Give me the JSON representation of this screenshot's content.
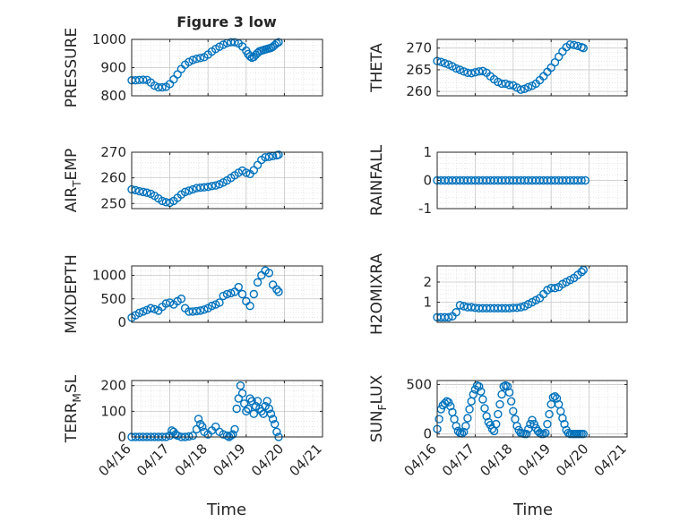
{
  "figure": {
    "title": "Figure 3 low",
    "xlabel": "Time"
  },
  "chart_data": [
    {
      "type": "scatter",
      "ylabel": "PRESSURE",
      "xlim": [
        "04/16",
        "04/21"
      ],
      "ylim": [
        800,
        1000
      ],
      "yticks": [
        800,
        900,
        1000
      ],
      "grid": true,
      "marker": "circle",
      "color": "#0072BD",
      "x": [
        0.0,
        0.1,
        0.2,
        0.3,
        0.4,
        0.5,
        0.6,
        0.7,
        0.8,
        0.9,
        1.0,
        1.1,
        1.2,
        1.3,
        1.4,
        1.5,
        1.6,
        1.7,
        1.8,
        1.9,
        2.0,
        2.1,
        2.2,
        2.3,
        2.4,
        2.5,
        2.6,
        2.7,
        2.8,
        2.9,
        3.0,
        3.05,
        3.1,
        3.15,
        3.2,
        3.25,
        3.3,
        3.35,
        3.4,
        3.45,
        3.5,
        3.55,
        3.6,
        3.65,
        3.7,
        3.75,
        3.8,
        3.85
      ],
      "y": [
        855,
        855,
        856,
        857,
        856,
        847,
        836,
        830,
        830,
        832,
        842,
        858,
        876,
        895,
        910,
        920,
        927,
        931,
        934,
        937,
        946,
        957,
        966,
        974,
        981,
        987,
        990,
        990,
        986,
        975,
        960,
        948,
        940,
        935,
        938,
        945,
        952,
        958,
        960,
        962,
        964,
        966,
        968,
        970,
        974,
        980,
        986,
        990
      ]
    },
    {
      "type": "scatter",
      "ylabel": "THETA",
      "xlim": [
        "04/16",
        "04/21"
      ],
      "ylim": [
        259,
        272
      ],
      "yticks": [
        260,
        265,
        270
      ],
      "grid": true,
      "marker": "circle",
      "color": "#0072BD",
      "x": [
        0.0,
        0.1,
        0.2,
        0.3,
        0.4,
        0.5,
        0.6,
        0.7,
        0.8,
        0.9,
        1.0,
        1.1,
        1.2,
        1.3,
        1.4,
        1.5,
        1.6,
        1.7,
        1.8,
        1.9,
        2.0,
        2.1,
        2.2,
        2.3,
        2.4,
        2.5,
        2.6,
        2.7,
        2.8,
        2.9,
        3.0,
        3.1,
        3.2,
        3.3,
        3.4,
        3.5,
        3.6,
        3.7,
        3.8,
        3.85
      ],
      "y": [
        267,
        266.8,
        266.5,
        266.2,
        265.8,
        265.3,
        265,
        264.6,
        264.3,
        264.2,
        264.4,
        264.6,
        264.7,
        264.3,
        263.5,
        262.8,
        262.2,
        261.8,
        261.8,
        261.5,
        261.4,
        260.9,
        260.4,
        260.6,
        261,
        261.3,
        261.8,
        262.6,
        263.5,
        264.5,
        265.5,
        266.7,
        268,
        269.2,
        270.2,
        270.8,
        270.7,
        270.5,
        270.2,
        270
      ]
    },
    {
      "type": "scatter",
      "ylabel": "AIR",
      "ylabel_subscript": "T",
      "ylabel_suffix": "EMP",
      "xlim": [
        "04/16",
        "04/21"
      ],
      "ylim": [
        248,
        270
      ],
      "yticks": [
        250,
        260,
        270
      ],
      "grid": true,
      "marker": "circle",
      "color": "#0072BD",
      "x": [
        0.0,
        0.1,
        0.2,
        0.3,
        0.4,
        0.5,
        0.6,
        0.7,
        0.8,
        0.9,
        1.0,
        1.1,
        1.2,
        1.3,
        1.4,
        1.5,
        1.6,
        1.7,
        1.8,
        1.9,
        2.0,
        2.1,
        2.2,
        2.3,
        2.4,
        2.5,
        2.6,
        2.7,
        2.8,
        2.9,
        3.0,
        3.1,
        3.2,
        3.3,
        3.4,
        3.5,
        3.6,
        3.7,
        3.8,
        3.85
      ],
      "y": [
        255.5,
        255.2,
        254.8,
        254.5,
        254.2,
        253.8,
        253,
        252,
        251,
        250.5,
        250.3,
        251,
        252.2,
        253.5,
        254.5,
        255,
        255.5,
        256,
        256.2,
        256.3,
        256.5,
        256.8,
        257,
        257.5,
        258.2,
        259,
        260,
        261,
        262,
        262.8,
        262,
        261.5,
        263,
        265,
        267,
        268,
        268.2,
        268.5,
        268.8,
        269
      ]
    },
    {
      "type": "scatter",
      "ylabel": "RAINFALL",
      "xlim": [
        "04/16",
        "04/21"
      ],
      "ylim": [
        -1,
        1
      ],
      "yticks": [
        -1,
        0,
        1
      ],
      "grid": true,
      "marker": "circle",
      "color": "#0072BD",
      "x": [
        0.0,
        0.1,
        0.2,
        0.3,
        0.4,
        0.5,
        0.6,
        0.7,
        0.8,
        0.9,
        1.0,
        1.1,
        1.2,
        1.3,
        1.4,
        1.5,
        1.6,
        1.7,
        1.8,
        1.9,
        2.0,
        2.1,
        2.2,
        2.3,
        2.4,
        2.5,
        2.6,
        2.7,
        2.8,
        2.9,
        3.0,
        3.1,
        3.2,
        3.3,
        3.4,
        3.5,
        3.6,
        3.7,
        3.8,
        3.9
      ],
      "y": [
        0,
        0,
        0,
        0,
        0,
        0,
        0,
        0,
        0,
        0,
        0,
        0,
        0,
        0,
        0,
        0,
        0,
        0,
        0,
        0,
        0,
        0,
        0,
        0,
        0,
        0,
        0,
        0,
        0,
        0,
        0,
        0,
        0,
        0,
        0,
        0,
        0,
        0,
        0,
        0
      ]
    },
    {
      "type": "scatter",
      "ylabel": "MIXDEPTH",
      "xlim": [
        "04/16",
        "04/21"
      ],
      "ylim": [
        0,
        1200
      ],
      "yticks": [
        0,
        500,
        1000
      ],
      "grid": true,
      "marker": "circle",
      "color": "#0072BD",
      "x": [
        0.0,
        0.1,
        0.2,
        0.3,
        0.4,
        0.5,
        0.6,
        0.7,
        0.8,
        0.9,
        1.0,
        1.1,
        1.2,
        1.3,
        1.4,
        1.5,
        1.6,
        1.7,
        1.8,
        1.9,
        2.0,
        2.1,
        2.2,
        2.3,
        2.4,
        2.5,
        2.6,
        2.7,
        2.8,
        2.9,
        3.0,
        3.1,
        3.2,
        3.3,
        3.4,
        3.5,
        3.6,
        3.7,
        3.8,
        3.85
      ],
      "y": [
        100,
        150,
        200,
        230,
        260,
        300,
        280,
        250,
        330,
        400,
        420,
        380,
        450,
        500,
        300,
        230,
        230,
        240,
        250,
        270,
        300,
        350,
        380,
        420,
        560,
        600,
        620,
        650,
        750,
        600,
        450,
        350,
        600,
        850,
        1000,
        1100,
        1050,
        800,
        700,
        650
      ]
    },
    {
      "type": "scatter",
      "ylabel": "H2OMIXRA",
      "xlim": [
        "04/16",
        "04/21"
      ],
      "ylim": [
        0,
        2.8
      ],
      "yticks": [
        1,
        2
      ],
      "grid": true,
      "marker": "circle",
      "color": "#0072BD",
      "x": [
        0.0,
        0.1,
        0.2,
        0.3,
        0.4,
        0.5,
        0.6,
        0.7,
        0.8,
        0.9,
        1.0,
        1.1,
        1.2,
        1.3,
        1.4,
        1.5,
        1.6,
        1.7,
        1.8,
        1.9,
        2.0,
        2.1,
        2.2,
        2.3,
        2.4,
        2.5,
        2.6,
        2.7,
        2.8,
        2.9,
        3.0,
        3.1,
        3.2,
        3.3,
        3.4,
        3.5,
        3.6,
        3.7,
        3.8,
        3.85
      ],
      "y": [
        0.25,
        0.25,
        0.25,
        0.25,
        0.3,
        0.5,
        0.85,
        0.8,
        0.75,
        0.75,
        0.72,
        0.7,
        0.7,
        0.7,
        0.7,
        0.7,
        0.7,
        0.7,
        0.7,
        0.7,
        0.72,
        0.72,
        0.75,
        0.8,
        0.9,
        1.0,
        1.1,
        1.2,
        1.4,
        1.6,
        1.7,
        1.7,
        1.75,
        1.9,
        2.0,
        2.1,
        2.2,
        2.35,
        2.5,
        2.6
      ]
    },
    {
      "type": "scatter",
      "ylabel": "TERR",
      "ylabel_subscript": "M",
      "ylabel_suffix": "SL",
      "xlim": [
        "04/16",
        "04/21"
      ],
      "ylim": [
        0,
        220
      ],
      "yticks": [
        0,
        100,
        200
      ],
      "xticks": [
        "04/16",
        "04/17",
        "04/18",
        "04/19",
        "04/20",
        "04/21"
      ],
      "grid": true,
      "marker": "circle",
      "color": "#0072BD",
      "x": [
        0.0,
        0.1,
        0.2,
        0.3,
        0.4,
        0.5,
        0.6,
        0.7,
        0.8,
        0.9,
        1.0,
        1.05,
        1.1,
        1.15,
        1.2,
        1.3,
        1.4,
        1.5,
        1.6,
        1.7,
        1.75,
        1.8,
        1.85,
        1.9,
        2.0,
        2.1,
        2.2,
        2.3,
        2.4,
        2.5,
        2.55,
        2.6,
        2.65,
        2.7,
        2.75,
        2.8,
        2.85,
        2.9,
        2.95,
        3.0,
        3.05,
        3.1,
        3.15,
        3.2,
        3.25,
        3.3,
        3.35,
        3.4,
        3.45,
        3.5,
        3.55,
        3.6,
        3.65,
        3.7,
        3.75,
        3.8,
        3.85
      ],
      "y": [
        0,
        0,
        0,
        0,
        0,
        0,
        0,
        0,
        0,
        0,
        5,
        25,
        20,
        10,
        5,
        0,
        0,
        2,
        5,
        30,
        70,
        50,
        40,
        20,
        10,
        25,
        40,
        20,
        10,
        5,
        0,
        5,
        10,
        30,
        110,
        150,
        200,
        170,
        130,
        100,
        110,
        150,
        140,
        90,
        120,
        140,
        110,
        100,
        90,
        120,
        140,
        110,
        90,
        70,
        50,
        20,
        0
      ]
    },
    {
      "type": "scatter",
      "ylabel": "SUN",
      "ylabel_subscript": "F",
      "ylabel_suffix": "LUX",
      "xlim": [
        "04/16",
        "04/21"
      ],
      "ylim": [
        -30,
        540
      ],
      "yticks": [
        0,
        500
      ],
      "xticks": [
        "04/16",
        "04/17",
        "04/18",
        "04/19",
        "04/20",
        "04/21"
      ],
      "grid": true,
      "marker": "circle",
      "color": "#0072BD",
      "x": [
        0.0,
        0.05,
        0.1,
        0.15,
        0.2,
        0.25,
        0.3,
        0.35,
        0.4,
        0.45,
        0.5,
        0.55,
        0.6,
        0.65,
        0.7,
        0.75,
        0.8,
        0.85,
        0.9,
        0.95,
        1.0,
        1.05,
        1.1,
        1.15,
        1.2,
        1.25,
        1.3,
        1.35,
        1.4,
        1.45,
        1.5,
        1.55,
        1.6,
        1.65,
        1.7,
        1.75,
        1.8,
        1.85,
        1.9,
        1.95,
        2.0,
        2.05,
        2.1,
        2.15,
        2.2,
        2.25,
        2.3,
        2.35,
        2.4,
        2.45,
        2.5,
        2.55,
        2.6,
        2.65,
        2.7,
        2.75,
        2.8,
        2.85,
        2.9,
        2.95,
        3.0,
        3.05,
        3.1,
        3.15,
        3.2,
        3.25,
        3.3,
        3.35,
        3.4,
        3.45,
        3.5,
        3.55,
        3.6,
        3.65,
        3.7,
        3.75,
        3.8,
        3.85
      ],
      "y": [
        50,
        150,
        250,
        290,
        310,
        330,
        320,
        280,
        220,
        150,
        80,
        30,
        10,
        5,
        20,
        80,
        160,
        250,
        330,
        400,
        450,
        490,
        480,
        430,
        350,
        260,
        180,
        120,
        90,
        50,
        30,
        100,
        200,
        300,
        400,
        480,
        490,
        480,
        420,
        330,
        230,
        150,
        80,
        40,
        10,
        5,
        0,
        0,
        50,
        100,
        140,
        100,
        60,
        30,
        10,
        0,
        0,
        10,
        100,
        200,
        300,
        370,
        380,
        360,
        300,
        230,
        160,
        100,
        40,
        10,
        0,
        0,
        0,
        0,
        0,
        0,
        0,
        0
      ]
    }
  ]
}
